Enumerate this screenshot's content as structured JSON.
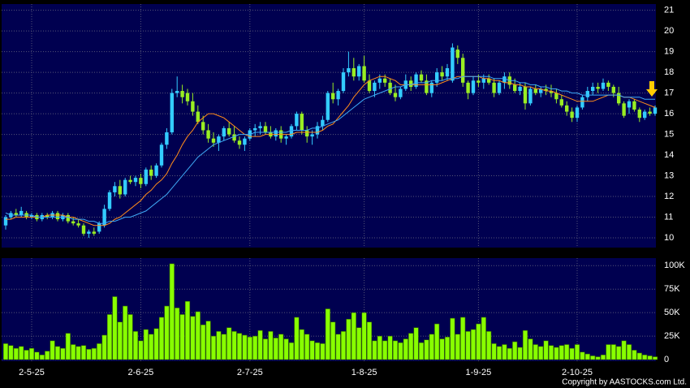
{
  "chart_data": {
    "type": "candlestick",
    "categories": [
      null,
      null,
      null,
      null,
      null,
      "2-5-25",
      null,
      null,
      null,
      null,
      null,
      null,
      null,
      null,
      null,
      null,
      null,
      null,
      null,
      null,
      null,
      null,
      null,
      null,
      null,
      null,
      "2-6-25",
      null,
      null,
      null,
      null,
      null,
      null,
      null,
      null,
      null,
      null,
      null,
      null,
      null,
      null,
      null,
      null,
      null,
      null,
      null,
      null,
      "2-7-25",
      null,
      null,
      null,
      null,
      null,
      null,
      null,
      null,
      null,
      null,
      null,
      null,
      null,
      null,
      null,
      null,
      null,
      null,
      null,
      null,
      null,
      "1-8-25",
      null,
      null,
      null,
      null,
      null,
      null,
      null,
      null,
      null,
      null,
      null,
      null,
      null,
      null,
      null,
      null,
      null,
      null,
      null,
      null,
      null,
      "1-9-25",
      null,
      null,
      null,
      null,
      null,
      null,
      null,
      null,
      null,
      null,
      null,
      null,
      null,
      null,
      null,
      null,
      null,
      null,
      "2-10-25",
      null,
      null,
      null,
      null,
      null,
      null,
      null,
      null,
      null,
      null,
      null,
      null,
      null,
      null,
      null
    ],
    "open": [
      10.6,
      11.0,
      11.2,
      11.1,
      11.2,
      11.0,
      11.1,
      10.9,
      11.1,
      11.0,
      11.2,
      10.9,
      11.1,
      10.8,
      10.7,
      10.6,
      10.2,
      10.3,
      10.3,
      10.6,
      11.4,
      12.2,
      12.5,
      12.1,
      12.8,
      12.7,
      12.9,
      12.6,
      13.3,
      13.0,
      13.5,
      14.5,
      15.1,
      17.0,
      17.1,
      17.0,
      16.6,
      16.1,
      15.6,
      15.2,
      14.8,
      14.6,
      14.9,
      15.3,
      15.0,
      14.7,
      14.5,
      14.8,
      15.2,
      15.3,
      15.4,
      15.1,
      14.9,
      15.2,
      14.8,
      14.9,
      15.4,
      16.0,
      15.2,
      14.9,
      15.0,
      15.4,
      15.7,
      17.0,
      16.7,
      17.1,
      18.0,
      18.2,
      17.8,
      18.3,
      17.6,
      17.1,
      17.5,
      17.7,
      17.5,
      17.0,
      16.8,
      17.2,
      17.6,
      17.3,
      17.9,
      17.6,
      17.0,
      17.5,
      18.0,
      17.8,
      17.6,
      19.1,
      18.7,
      17.5,
      17.0,
      17.6,
      17.5,
      17.7,
      17.5,
      17.0,
      17.5,
      17.8,
      17.4,
      17.1,
      17.3,
      16.5,
      17.2,
      17.0,
      17.2,
      17.1,
      17.0,
      16.7,
      16.4,
      16.1,
      15.8,
      16.3,
      16.8,
      17.1,
      17.3,
      17.2,
      17.5,
      17.3,
      17.0,
      16.5,
      16.3,
      16.6,
      16.2,
      15.8,
      16.1,
      16.0
    ],
    "high": [
      11.1,
      11.3,
      11.4,
      11.5,
      11.3,
      11.2,
      11.2,
      11.2,
      11.2,
      11.3,
      11.3,
      11.2,
      11.2,
      11.0,
      10.9,
      10.7,
      10.4,
      10.5,
      10.8,
      11.6,
      12.3,
      12.7,
      12.8,
      12.9,
      13.0,
      13.0,
      13.1,
      13.4,
      13.5,
      13.6,
      14.6,
      15.3,
      17.2,
      17.8,
      17.4,
      17.2,
      17.0,
      16.4,
      15.9,
      15.5,
      15.1,
      15.0,
      15.4,
      15.6,
      15.4,
      14.9,
      14.9,
      15.3,
      15.5,
      15.6,
      15.6,
      15.4,
      15.3,
      15.4,
      15.0,
      15.5,
      16.1,
      16.1,
      15.4,
      15.2,
      15.6,
      15.9,
      17.1,
      17.5,
      17.2,
      18.2,
      19.0,
      18.7,
      18.4,
      18.8,
      17.9,
      17.6,
      17.9,
      17.9,
      17.7,
      17.4,
      17.3,
      17.9,
      17.8,
      18.0,
      18.1,
      17.9,
      17.6,
      18.2,
      18.3,
      18.4,
      19.4,
      19.3,
      18.9,
      17.6,
      17.8,
      17.9,
      17.9,
      17.9,
      17.7,
      17.6,
      18.0,
      18.0,
      17.7,
      17.5,
      17.5,
      17.3,
      17.4,
      17.3,
      17.4,
      17.4,
      17.2,
      16.9,
      16.6,
      16.3,
      16.4,
      16.9,
      17.3,
      17.5,
      17.5,
      17.7,
      17.6,
      17.4,
      17.3,
      16.6,
      16.7,
      16.7,
      16.3,
      16.2,
      16.3,
      16.4
    ],
    "low": [
      10.4,
      10.9,
      11.0,
      11.0,
      10.9,
      10.9,
      10.8,
      10.8,
      10.9,
      10.9,
      10.8,
      10.8,
      10.7,
      10.6,
      10.5,
      10.1,
      10.0,
      10.1,
      10.2,
      10.5,
      11.3,
      12.0,
      11.9,
      12.0,
      12.6,
      12.5,
      12.4,
      12.5,
      12.8,
      12.9,
      13.4,
      14.3,
      15.0,
      16.8,
      16.5,
      16.4,
      15.9,
      15.5,
      15.0,
      14.6,
      14.4,
      14.2,
      14.7,
      14.9,
      14.6,
      14.3,
      14.2,
      14.7,
      14.9,
      15.0,
      15.0,
      14.8,
      14.7,
      14.6,
      14.5,
      14.8,
      15.2,
      15.0,
      14.6,
      14.5,
      14.8,
      15.2,
      15.6,
      16.5,
      16.4,
      17.0,
      17.8,
      17.6,
      17.6,
      17.5,
      17.0,
      16.8,
      17.2,
      17.3,
      16.9,
      16.6,
      16.7,
      17.1,
      17.1,
      17.2,
      17.5,
      16.9,
      16.8,
      17.3,
      17.6,
      17.6,
      17.5,
      18.4,
      17.3,
      16.7,
      16.9,
      17.3,
      17.2,
      17.4,
      16.8,
      16.9,
      17.2,
      17.2,
      17.0,
      16.9,
      16.2,
      16.4,
      16.9,
      16.8,
      16.9,
      16.8,
      16.5,
      16.3,
      15.9,
      15.6,
      15.6,
      16.2,
      16.6,
      16.9,
      17.0,
      17.1,
      17.1,
      16.8,
      16.4,
      15.8,
      16.0,
      16.1,
      15.6,
      15.7,
      15.9,
      15.9
    ],
    "close": [
      11.0,
      11.2,
      11.1,
      11.3,
      11.0,
      11.1,
      10.9,
      11.1,
      11.0,
      11.2,
      10.9,
      11.1,
      10.8,
      10.7,
      10.6,
      10.2,
      10.3,
      10.2,
      10.7,
      11.4,
      12.2,
      12.5,
      12.1,
      12.8,
      12.7,
      12.9,
      12.6,
      13.3,
      13.0,
      13.5,
      14.5,
      15.1,
      17.0,
      17.1,
      16.8,
      16.6,
      16.1,
      15.6,
      15.2,
      14.8,
      14.6,
      14.9,
      15.3,
      15.0,
      14.7,
      14.5,
      14.8,
      15.2,
      15.3,
      15.4,
      15.1,
      14.9,
      15.2,
      14.8,
      14.9,
      15.4,
      16.0,
      15.2,
      14.9,
      15.0,
      15.4,
      15.7,
      17.0,
      16.7,
      17.1,
      18.0,
      18.2,
      17.8,
      18.3,
      17.6,
      17.1,
      17.5,
      17.7,
      17.5,
      17.0,
      16.8,
      17.2,
      17.6,
      17.3,
      17.9,
      17.6,
      17.0,
      17.5,
      18.0,
      17.8,
      18.2,
      19.2,
      18.7,
      17.5,
      17.0,
      17.6,
      17.5,
      17.7,
      17.5,
      17.0,
      17.5,
      17.8,
      17.4,
      17.1,
      17.3,
      16.5,
      17.2,
      17.0,
      17.2,
      17.1,
      17.0,
      16.7,
      16.4,
      16.1,
      15.8,
      16.3,
      16.8,
      17.1,
      17.3,
      17.2,
      17.5,
      17.3,
      17.0,
      16.5,
      15.9,
      16.6,
      16.2,
      15.8,
      16.1,
      16.0,
      16.3
    ],
    "up_color": "#33ccff",
    "down_color": "#99ee22",
    "moving_averages": [
      {
        "color": "#ff8c1a",
        "values": [
          10.9,
          10.9,
          11.0,
          11.0,
          11.0,
          11.0,
          11.0,
          11.0,
          11.1,
          11.1,
          11.1,
          11.1,
          11.0,
          11.0,
          10.9,
          10.8,
          10.7,
          10.6,
          10.6,
          10.6,
          10.7,
          10.9,
          11.0,
          11.2,
          11.4,
          11.6,
          11.8,
          12.1,
          12.3,
          12.6,
          12.8,
          13.1,
          13.6,
          14.0,
          14.5,
          14.9,
          15.2,
          15.6,
          15.8,
          16.0,
          16.0,
          15.9,
          15.8,
          15.6,
          15.4,
          15.2,
          15.0,
          14.9,
          14.9,
          14.9,
          15.0,
          15.0,
          15.0,
          15.0,
          15.0,
          15.0,
          15.1,
          15.1,
          15.1,
          15.1,
          15.1,
          15.2,
          15.4,
          15.5,
          15.8,
          16.1,
          16.4,
          16.8,
          17.1,
          17.4,
          17.6,
          17.7,
          17.8,
          17.8,
          17.7,
          17.6,
          17.4,
          17.4,
          17.4,
          17.4,
          17.4,
          17.4,
          17.4,
          17.4,
          17.5,
          17.6,
          17.7,
          17.8,
          17.8,
          17.8,
          17.8,
          17.8,
          17.7,
          17.7,
          17.6,
          17.6,
          17.5,
          17.5,
          17.4,
          17.4,
          17.3,
          17.3,
          17.2,
          17.2,
          17.1,
          17.1,
          17.0,
          16.9,
          16.8,
          16.7,
          16.6,
          16.6,
          16.6,
          16.6,
          16.7,
          16.8,
          16.9,
          16.9,
          16.9,
          16.8,
          16.8,
          16.7,
          16.6,
          16.5,
          16.4,
          16.3
        ]
      },
      {
        "color": "#3fa9f5",
        "values": [
          11.2,
          11.1,
          11.1,
          11.1,
          11.1,
          11.1,
          11.0,
          11.0,
          11.0,
          11.0,
          11.0,
          11.0,
          11.0,
          10.9,
          10.9,
          10.9,
          10.8,
          10.8,
          10.7,
          10.7,
          10.8,
          10.8,
          10.9,
          11.0,
          11.0,
          11.1,
          11.2,
          11.3,
          11.5,
          11.7,
          11.9,
          12.1,
          12.4,
          12.7,
          13.0,
          13.3,
          13.6,
          13.9,
          14.1,
          14.3,
          14.5,
          14.6,
          14.7,
          14.8,
          14.9,
          15.0,
          15.0,
          15.0,
          15.1,
          15.1,
          15.1,
          15.1,
          15.1,
          15.1,
          15.1,
          15.2,
          15.2,
          15.2,
          15.2,
          15.3,
          15.3,
          15.4,
          15.5,
          15.6,
          15.7,
          15.9,
          16.1,
          16.3,
          16.5,
          16.7,
          16.8,
          16.9,
          17.0,
          17.1,
          17.2,
          17.3,
          17.3,
          17.4,
          17.4,
          17.5,
          17.5,
          17.5,
          17.6,
          17.6,
          17.6,
          17.7,
          17.7,
          17.7,
          17.8,
          17.8,
          17.8,
          17.8,
          17.8,
          17.8,
          17.7,
          17.7,
          17.7,
          17.6,
          17.6,
          17.5,
          17.5,
          17.4,
          17.4,
          17.3,
          17.3,
          17.2,
          17.2,
          17.1,
          17.1,
          17.0,
          17.0,
          16.9,
          16.9,
          16.9,
          16.9,
          16.9,
          16.9,
          16.9,
          16.9,
          16.8,
          16.8,
          16.8,
          16.8,
          16.7,
          16.7,
          16.7
        ]
      }
    ],
    "ylim": [
      9.53,
      21.3
    ],
    "yticks": [
      10,
      11,
      12,
      13,
      14,
      15,
      16,
      17,
      18,
      19,
      20,
      21
    ],
    "grid": true,
    "volume": {
      "color": "#88ff00",
      "values": [
        17000,
        15000,
        12000,
        14000,
        10000,
        12000,
        8000,
        5000,
        9000,
        20000,
        14000,
        12000,
        28000,
        16000,
        14000,
        15000,
        11000,
        12000,
        17000,
        26000,
        48000,
        67000,
        40000,
        57000,
        48000,
        30000,
        20000,
        32000,
        27000,
        33000,
        45000,
        57000,
        102000,
        55000,
        48000,
        62000,
        46000,
        51000,
        37000,
        41000,
        25000,
        30000,
        27000,
        34000,
        30000,
        28000,
        26000,
        24000,
        25000,
        31000,
        22000,
        30000,
        23000,
        27000,
        22000,
        18000,
        45000,
        32000,
        27000,
        20000,
        18000,
        17000,
        54000,
        40000,
        27000,
        30000,
        43000,
        50000,
        34000,
        50000,
        40000,
        20000,
        25000,
        20000,
        25000,
        20000,
        18000,
        22000,
        28000,
        34000,
        18000,
        21000,
        27000,
        38000,
        22000,
        24000,
        44000,
        27000,
        45000,
        30000,
        32000,
        38000,
        45000,
        30000,
        17000,
        14000,
        16000,
        12000,
        19000,
        13000,
        31000,
        22000,
        16000,
        14000,
        20000,
        15000,
        13000,
        15000,
        16000,
        12000,
        16000,
        8000,
        6000,
        4000,
        3000,
        5000,
        16000,
        16000,
        14000,
        20000,
        16000,
        10000,
        7000,
        5000,
        4000,
        3000
      ],
      "ylim": [
        0,
        108000
      ],
      "yticks": [
        {
          "value": 0,
          "label": "0"
        },
        {
          "value": 25000,
          "label": "25K"
        },
        {
          "value": 50000,
          "label": "50K"
        },
        {
          "value": 75000,
          "label": "75K"
        },
        {
          "value": 100000,
          "label": "100K"
        }
      ]
    },
    "copyright": "Copyright by AASTOCKS.com Ltd."
  }
}
